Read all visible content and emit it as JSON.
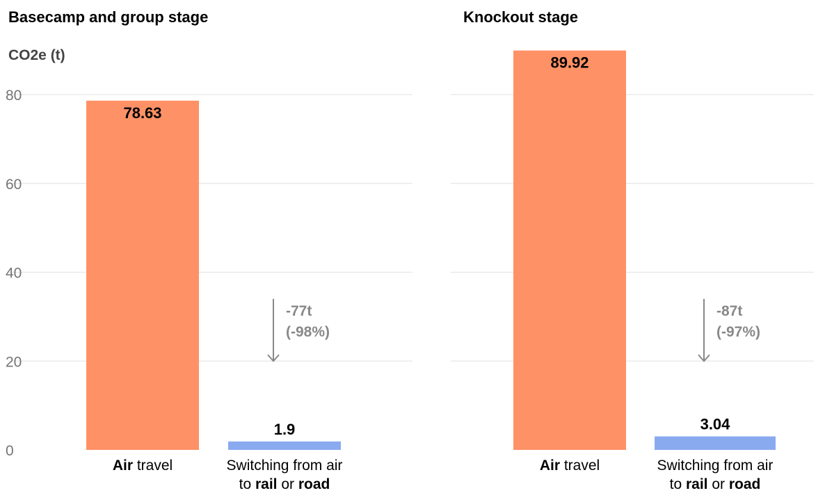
{
  "chart_data": [
    {
      "type": "bar",
      "title": "Basecamp and group stage",
      "ylabel": "CO2e (t)",
      "ylim": [
        0,
        90
      ],
      "yticks": [
        0,
        20,
        40,
        60,
        80
      ],
      "grid": true,
      "categories": [
        {
          "parts": [
            {
              "text": "Air",
              "bold": true
            },
            {
              "text": " travel",
              "bold": false
            }
          ]
        },
        {
          "lines": [
            [
              {
                "text": "Switching from air",
                "bold": false
              }
            ],
            [
              {
                "text": "to ",
                "bold": false
              },
              {
                "text": "rail",
                "bold": true
              },
              {
                "text": " or ",
                "bold": false
              },
              {
                "text": "road",
                "bold": true
              }
            ]
          ]
        }
      ],
      "values": [
        78.63,
        1.9
      ],
      "value_labels": [
        "78.63",
        "1.9"
      ],
      "colors": [
        "#ff9166",
        "#8aaaf0"
      ],
      "annotation": {
        "lines": [
          "-77t",
          "(-98%)"
        ],
        "arrow_from": 34,
        "arrow_to": 20
      }
    },
    {
      "type": "bar",
      "title": "Knockout stage",
      "ylabel": "",
      "ylim": [
        0,
        90
      ],
      "yticks": [
        0,
        20,
        40,
        60,
        80
      ],
      "grid": true,
      "categories": [
        {
          "parts": [
            {
              "text": "Air",
              "bold": true
            },
            {
              "text": " travel",
              "bold": false
            }
          ]
        },
        {
          "lines": [
            [
              {
                "text": "Switching from air",
                "bold": false
              }
            ],
            [
              {
                "text": "to ",
                "bold": false
              },
              {
                "text": "rail",
                "bold": true
              },
              {
                "text": " or ",
                "bold": false
              },
              {
                "text": "road",
                "bold": true
              }
            ]
          ]
        }
      ],
      "values": [
        89.92,
        3.04
      ],
      "value_labels": [
        "89.92",
        "3.04"
      ],
      "colors": [
        "#ff9166",
        "#8aaaf0"
      ],
      "annotation": {
        "lines": [
          "-87t",
          "(-97%)"
        ],
        "arrow_from": 34,
        "arrow_to": 20
      }
    }
  ]
}
